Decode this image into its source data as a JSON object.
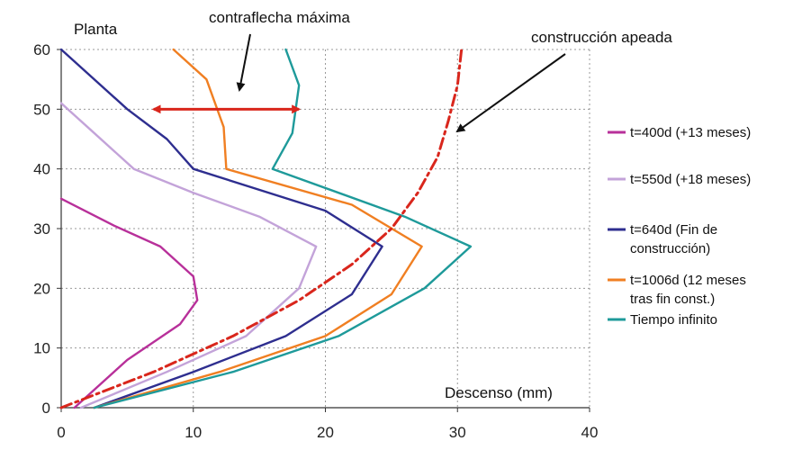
{
  "chart_data": {
    "type": "line",
    "xlabel": "Descenso (mm)",
    "ylabel": "Planta",
    "xlim": [
      0,
      40
    ],
    "ylim": [
      0,
      60
    ],
    "xticks": [
      0,
      10,
      20,
      30,
      40
    ],
    "yticks": [
      0,
      10,
      20,
      30,
      40,
      50,
      60
    ],
    "grid": "dashed",
    "legend_position": "right",
    "series": [
      {
        "name": "t=400d (+13 meses)",
        "color": "#b8309a",
        "dash": "solid",
        "points": [
          [
            1,
            0
          ],
          [
            5,
            8
          ],
          [
            9,
            14
          ],
          [
            10.3,
            18
          ],
          [
            10,
            22
          ],
          [
            7.5,
            27
          ],
          [
            4,
            30.5
          ],
          [
            0,
            35
          ]
        ]
      },
      {
        "name": "t=550d (+18 meses)",
        "color": "#c3a3d9",
        "dash": "solid",
        "points": [
          [
            1.5,
            0
          ],
          [
            8,
            6
          ],
          [
            14,
            12
          ],
          [
            18,
            20
          ],
          [
            19.3,
            27
          ],
          [
            15,
            32
          ],
          [
            10,
            36
          ],
          [
            5.5,
            40
          ],
          [
            2,
            47
          ],
          [
            0,
            51
          ]
        ]
      },
      {
        "name": "t=640d (Fin de construcción)",
        "color": "#2e2e8f",
        "dash": "solid",
        "points": [
          [
            2.5,
            0
          ],
          [
            10,
            6
          ],
          [
            17,
            12
          ],
          [
            22,
            19
          ],
          [
            24.3,
            27
          ],
          [
            20,
            33
          ],
          [
            10,
            40
          ],
          [
            8,
            45
          ],
          [
            5,
            50
          ],
          [
            0,
            60
          ]
        ]
      },
      {
        "name": "t=1006d (12 meses tras fin const.)",
        "color": "#f07f22",
        "dash": "solid",
        "points": [
          [
            2.5,
            0
          ],
          [
            12,
            6
          ],
          [
            20,
            12
          ],
          [
            25,
            19
          ],
          [
            27.3,
            27
          ],
          [
            22,
            34
          ],
          [
            12.5,
            40
          ],
          [
            12.3,
            47
          ],
          [
            11,
            55
          ],
          [
            8.5,
            60
          ]
        ]
      },
      {
        "name": "Tiempo infinito",
        "color": "#1e9a9a",
        "dash": "solid",
        "points": [
          [
            2.5,
            0
          ],
          [
            13,
            6
          ],
          [
            21,
            12
          ],
          [
            27.5,
            20
          ],
          [
            31,
            27
          ],
          [
            26,
            32
          ],
          [
            16,
            40
          ],
          [
            17.5,
            46
          ],
          [
            18,
            54
          ],
          [
            17,
            60
          ]
        ]
      },
      {
        "name": "construcción apeada",
        "color": "#d9261c",
        "dash": "dashdot",
        "points": [
          [
            0,
            0
          ],
          [
            7,
            6
          ],
          [
            13,
            12
          ],
          [
            18,
            18
          ],
          [
            22,
            24
          ],
          [
            25,
            30
          ],
          [
            27,
            36
          ],
          [
            28.5,
            42
          ],
          [
            29.3,
            48
          ],
          [
            30,
            54
          ],
          [
            30.3,
            60
          ]
        ]
      }
    ],
    "annotations": {
      "contraflecha_maxima": "contraflecha máxima",
      "construccion_apeada": "construcción apeada"
    },
    "max_camber_arrow": {
      "y": 50,
      "x_from": 7,
      "x_to": 18
    }
  },
  "legend": [
    {
      "text": "t=400d (+13 meses)",
      "color": "#b8309a"
    },
    {
      "text": "t=550d (+18 meses)",
      "color": "#c3a3d9"
    },
    {
      "text": "t=640d (Fin de|construcción)",
      "color": "#2e2e8f"
    },
    {
      "text": "t=1006d (12 meses|tras fin const.)",
      "color": "#f07f22"
    },
    {
      "text": "Tiempo infinito",
      "color": "#1e9a9a"
    }
  ]
}
